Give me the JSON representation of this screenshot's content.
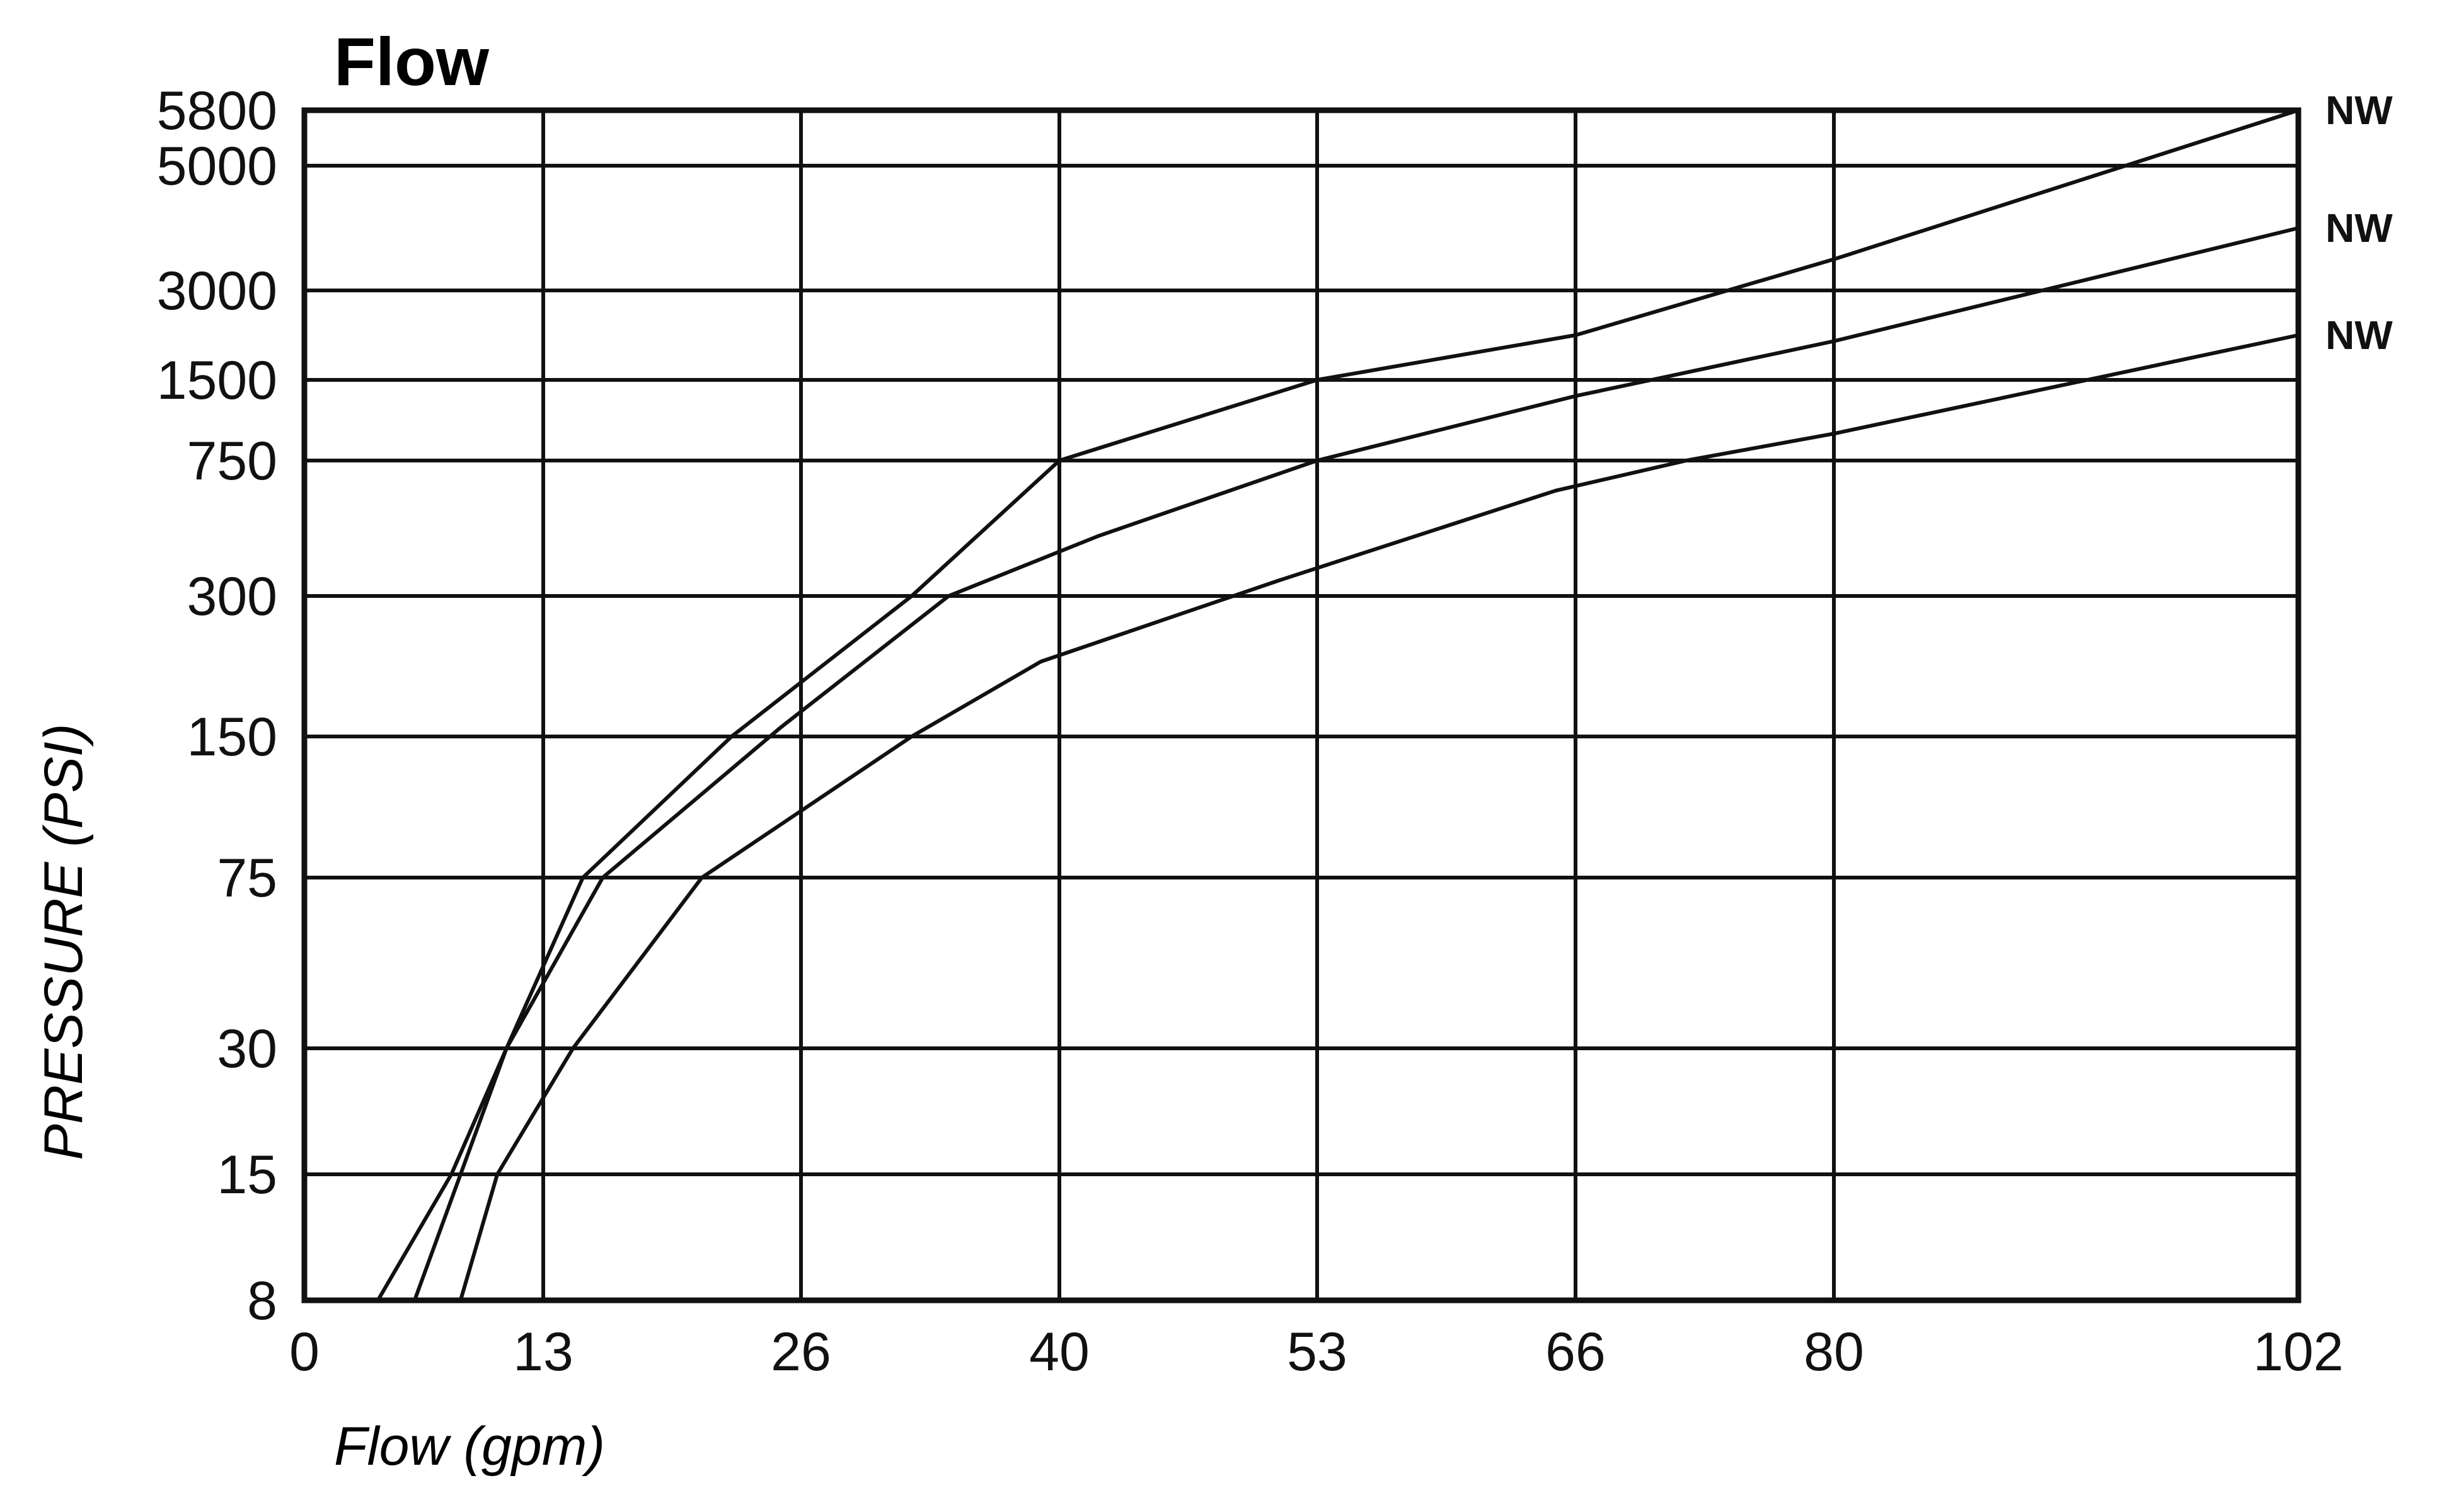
{
  "chart_data": {
    "type": "line",
    "title": "Flow",
    "xlabel": "Flow (gpm)",
    "ylabel": "PRESSURE (PSI)",
    "x_ticks": [
      0,
      13,
      26,
      40,
      53,
      66,
      80,
      102
    ],
    "y_ticks": [
      8,
      15,
      30,
      75,
      150,
      300,
      750,
      1500,
      3000,
      5000,
      5800
    ],
    "xlim": [
      0,
      102
    ],
    "ylim": [
      8,
      5800
    ],
    "grid": true,
    "series": [
      {
        "name": "NW",
        "label_text": "NW",
        "x": [
          4,
          8,
          11,
          15,
          22.5,
          32,
          40,
          53,
          66,
          80,
          102
        ],
        "y": [
          8,
          15,
          30,
          75,
          150,
          300,
          750,
          1500,
          2250,
          3500,
          5800
        ]
      },
      {
        "name": "NW",
        "label_text": "NW",
        "x": [
          6,
          8.5,
          11,
          16,
          25,
          34,
          42,
          53,
          66,
          80,
          102
        ],
        "y": [
          8,
          15,
          30,
          75,
          160,
          300,
          500,
          750,
          1350,
          2150,
          4000
        ]
      },
      {
        "name": "NW",
        "label_text": "NW",
        "x": [
          8.5,
          10.5,
          14.5,
          21,
          32,
          39,
          51,
          65,
          72,
          80,
          102
        ],
        "y": [
          8,
          15,
          30,
          75,
          150,
          230,
          350,
          650,
          750,
          1000,
          2250
        ]
      }
    ]
  },
  "colors": {
    "line": "#111111",
    "grid": "#111111",
    "background": "#ffffff"
  }
}
